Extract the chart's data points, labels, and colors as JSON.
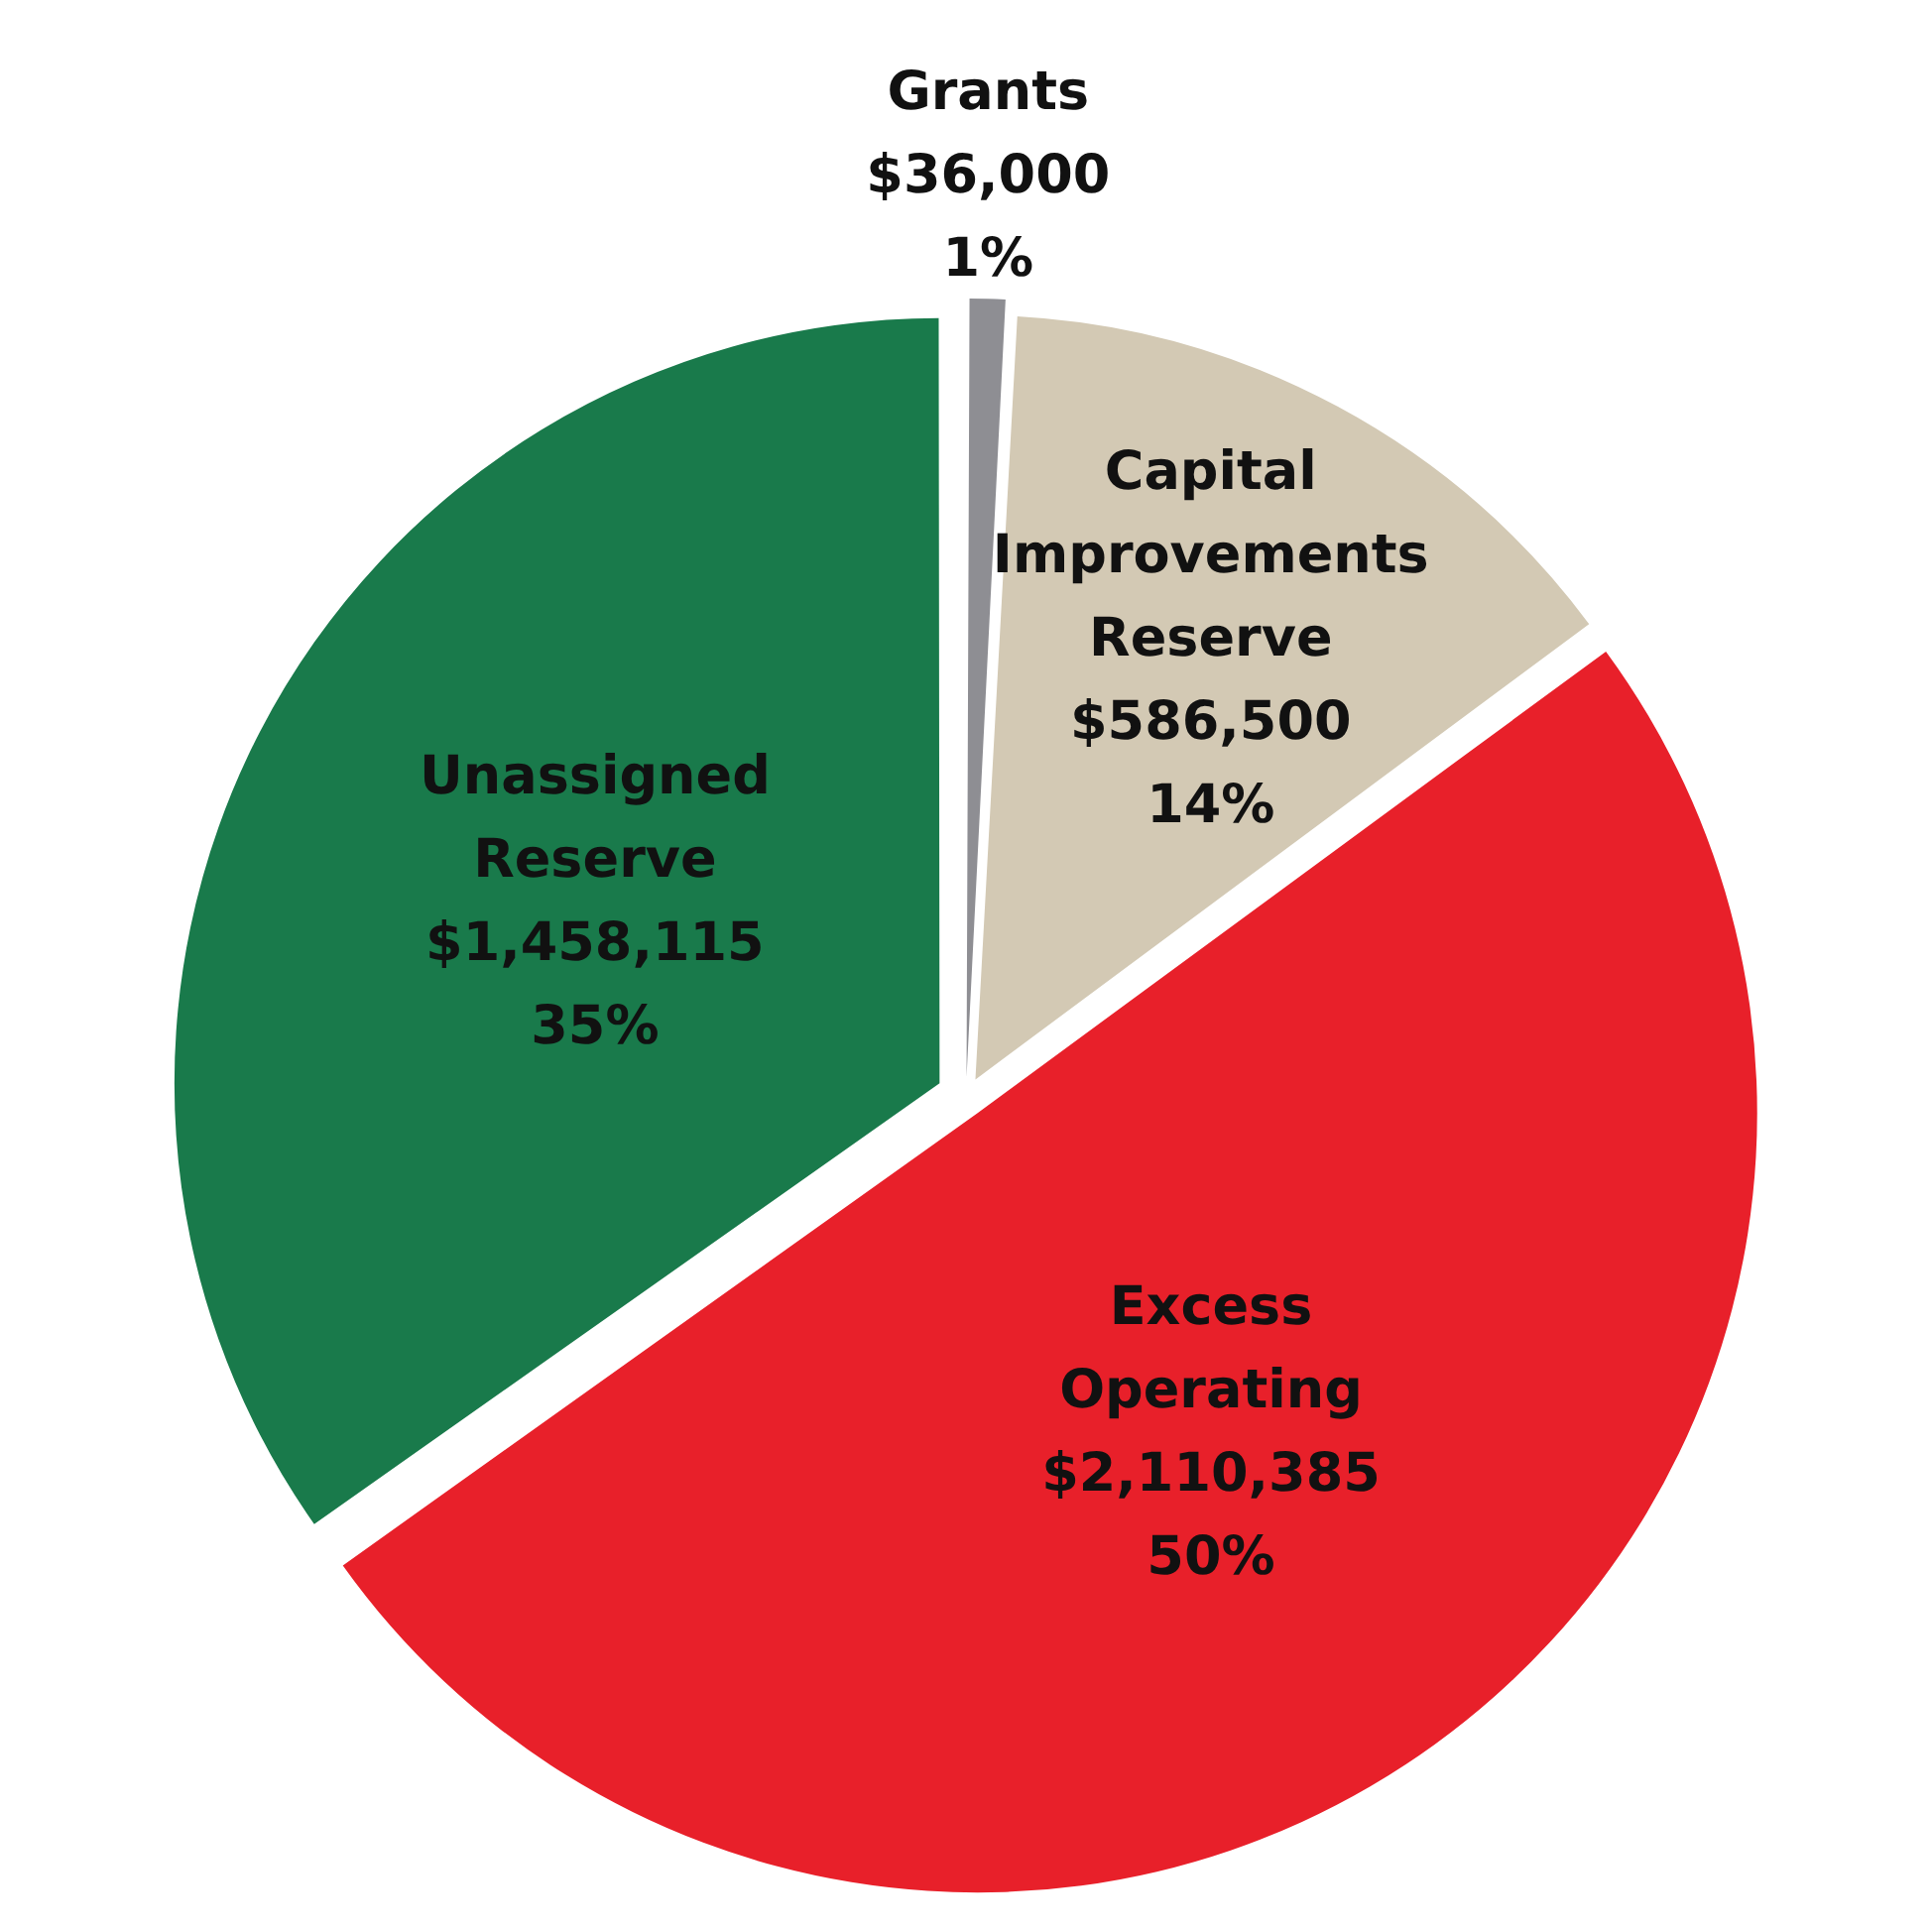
{
  "chart_data": {
    "type": "pie",
    "categories": [
      "Grants",
      "Capital Improvements Reserve",
      "Excess Operating",
      "Unassigned Reserve"
    ],
    "values": [
      36000,
      586500,
      2110385,
      1458115
    ],
    "colors": [
      "#8e8e93",
      "#d3c9b4",
      "#e8202a",
      "#197a4b"
    ],
    "value_labels": [
      "$36,000\n1%",
      "$586,500\n14%",
      "$2,110,385\n50%",
      "$1,458,115\n35%"
    ],
    "legend": false
  }
}
